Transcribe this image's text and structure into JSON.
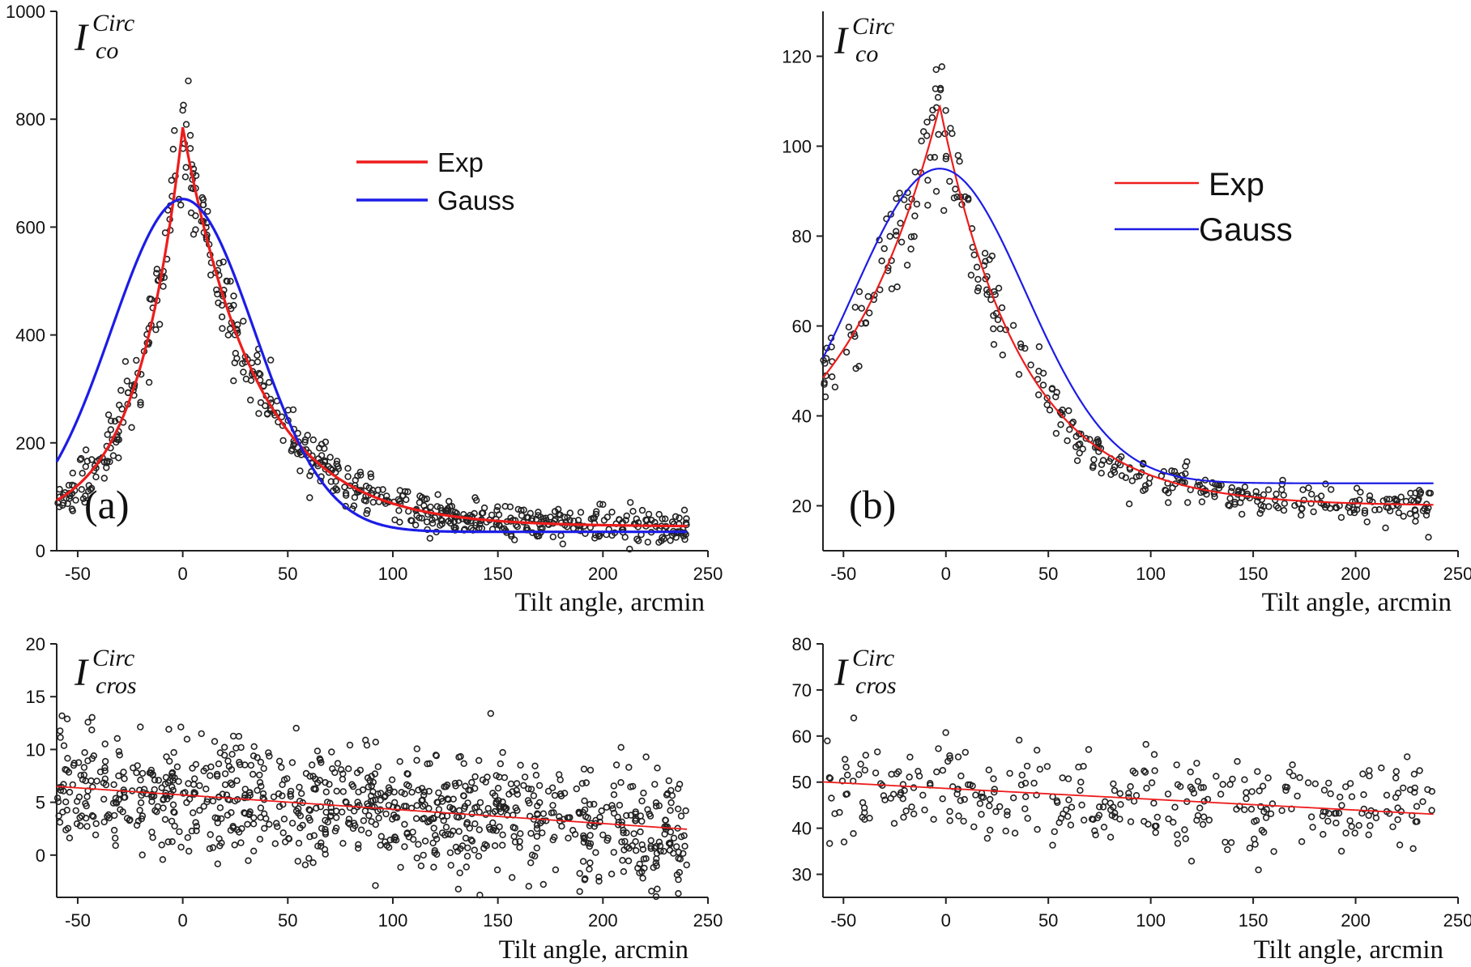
{
  "chart_data": [
    {
      "id": "a_top",
      "type": "scatter",
      "panel_label": "(a)",
      "ylabel_main": "I",
      "ylabel_sup": "Circ",
      "ylabel_sub": "co",
      "xlabel": "Tilt angle, arcmin",
      "xlim": [
        -60,
        250
      ],
      "ylim": [
        0,
        1000
      ],
      "xticks": [
        -50,
        0,
        50,
        100,
        150,
        200,
        250
      ],
      "yticks": [
        0,
        200,
        400,
        600,
        800,
        1000
      ],
      "legend": [
        {
          "label": "Exp",
          "color": "#ee1c1c"
        },
        {
          "label": "Gauss",
          "color": "#1c1ce6"
        }
      ],
      "series": [
        {
          "name": "data",
          "kind": "points",
          "model": "exp",
          "baseline": 45,
          "amp": 740,
          "center": 0,
          "wL": 22,
          "wR": 35,
          "noise": 35,
          "n": 620,
          "x_range": [
            -60,
            240
          ]
        },
        {
          "name": "Exp",
          "kind": "fit",
          "model": "exp",
          "color": "#ee1c1c",
          "baseline": 45,
          "amp": 740,
          "center": 0,
          "wL": 22,
          "wR": 35
        },
        {
          "name": "Gauss",
          "kind": "fit",
          "model": "gauss",
          "color": "#1c1ce6",
          "baseline": 35,
          "amp": 617,
          "center": 0,
          "sigma": 34
        }
      ]
    },
    {
      "id": "b_top",
      "type": "scatter",
      "panel_label": "(b)",
      "ylabel_main": "I",
      "ylabel_sup": "Circ",
      "ylabel_sub": "co",
      "xlabel": "Tilt angle, arcmin",
      "xlim": [
        -60,
        250
      ],
      "ylim": [
        10,
        130
      ],
      "xticks": [
        -50,
        0,
        50,
        100,
        150,
        200,
        250
      ],
      "yticks": [
        20,
        40,
        60,
        80,
        100,
        120
      ],
      "legend": [
        {
          "label": "Exp",
          "color": "#ee1c1c"
        },
        {
          "label": "Gauss",
          "color": "#1c1ce6"
        }
      ],
      "series": [
        {
          "name": "data",
          "kind": "points",
          "model": "exp",
          "baseline": 20,
          "amp": 89,
          "center": -3,
          "wL": 50,
          "wR": 40,
          "noise": 4.5,
          "n": 380,
          "x_range": [
            -60,
            238
          ]
        },
        {
          "name": "Exp",
          "kind": "fit",
          "model": "exp",
          "color": "#ee1c1c",
          "baseline": 20,
          "amp": 89,
          "center": -3,
          "wL": 50,
          "wR": 40
        },
        {
          "name": "Gauss",
          "kind": "fit",
          "model": "gauss",
          "color": "#1c1ce6",
          "baseline": 25,
          "amp": 70,
          "center": -3,
          "sigma": 42
        }
      ]
    },
    {
      "id": "a_bottom",
      "type": "scatter",
      "ylabel_main": "I",
      "ylabel_sup": "Circ",
      "ylabel_sub": "cros",
      "xlabel": "Tilt angle, arcmin",
      "xlim": [
        -60,
        250
      ],
      "ylim": [
        -4,
        20
      ],
      "xticks": [
        -50,
        0,
        50,
        100,
        150,
        200,
        250
      ],
      "yticks": [
        0,
        5,
        10,
        15,
        20
      ],
      "series": [
        {
          "name": "data",
          "kind": "points",
          "model": "linear",
          "a": 6.5,
          "b": -0.0135,
          "x0": -60,
          "noise": 2.8,
          "n": 900,
          "x_range": [
            -60,
            240
          ]
        },
        {
          "name": "Linear fit",
          "kind": "fit",
          "model": "linear",
          "color": "#ee1c1c",
          "a": 6.5,
          "b": -0.0135,
          "x0": -60
        }
      ]
    },
    {
      "id": "b_bottom",
      "type": "scatter",
      "ylabel_main": "I",
      "ylabel_sup": "Circ",
      "ylabel_sub": "cros",
      "xlabel": "Tilt angle, arcmin",
      "xlim": [
        -60,
        250
      ],
      "ylim": [
        25,
        80
      ],
      "xticks": [
        -50,
        0,
        50,
        100,
        150,
        200,
        250
      ],
      "yticks": [
        30,
        40,
        50,
        60,
        70,
        80
      ],
      "series": [
        {
          "name": "data",
          "kind": "points",
          "model": "linear",
          "a": 50,
          "b": -0.0235,
          "x0": -58,
          "noise": 5.5,
          "n": 330,
          "x_range": [
            -58,
            238
          ]
        },
        {
          "name": "Linear fit",
          "kind": "fit",
          "model": "linear",
          "color": "#ee1c1c",
          "a": 50,
          "b": -0.0235,
          "x0": -58
        }
      ]
    }
  ]
}
